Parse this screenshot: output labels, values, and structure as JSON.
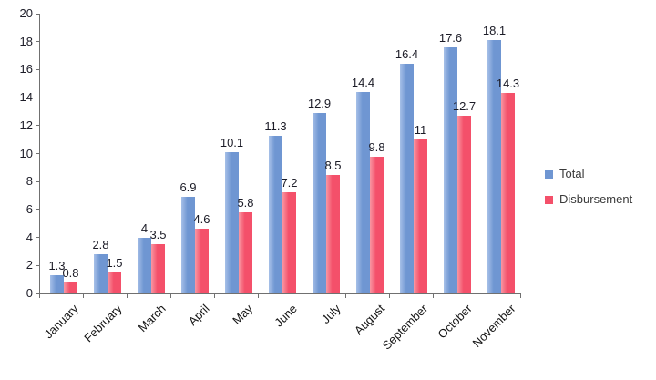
{
  "chart_data": {
    "type": "bar",
    "title": "",
    "xlabel": "",
    "ylabel": "",
    "categories": [
      "January",
      "February",
      "March",
      "April",
      "May",
      "June",
      "July",
      "August",
      "September",
      "October",
      "November"
    ],
    "series": [
      {
        "name": "Total",
        "color": "#6f96d2",
        "color_light": "#a6c0e8",
        "values": [
          1.3,
          2.8,
          4,
          6.9,
          10.1,
          11.3,
          12.9,
          14.4,
          16.4,
          17.6,
          18.1
        ]
      },
      {
        "name": "Disbursement",
        "color": "#f4506a",
        "color_light": "#f997a2",
        "values": [
          0.8,
          1.5,
          3.5,
          4.6,
          5.8,
          7.2,
          8.5,
          9.8,
          11,
          12.7,
          14.3
        ]
      }
    ],
    "ylim": [
      0,
      20
    ],
    "yticks": [
      0,
      2,
      4,
      6,
      8,
      10,
      12,
      14,
      16,
      18,
      20
    ],
    "grid": false,
    "data_labels": true,
    "legend_position": "right"
  }
}
